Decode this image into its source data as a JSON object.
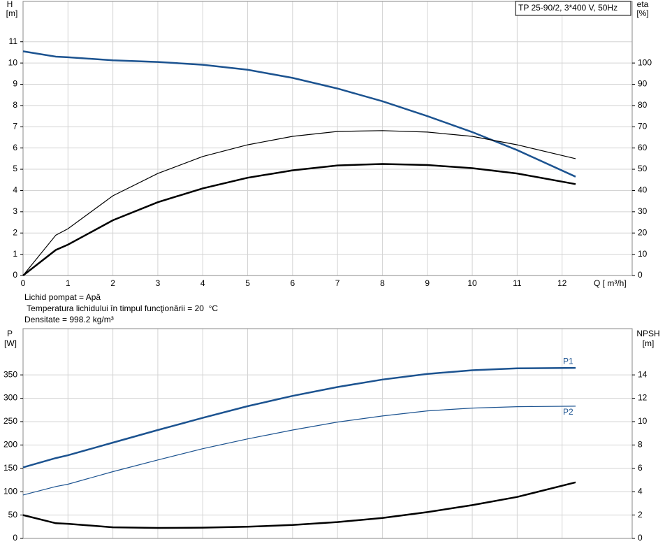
{
  "chart_data": [
    {
      "type": "line",
      "title": "TP 25-90/2, 3*400 V, 50Hz",
      "y_label": "H",
      "y_unit": "[m]",
      "y2_label": "eta",
      "y2_unit": "[%]",
      "x_label": "Q [ m³/h]",
      "notes": [
        "Lichid pompat = Apă",
        " Temperatura lichidului în timpul funcţionării = 20  °C",
        "Densitate = 998.2  kg/m³"
      ],
      "x": [
        0,
        0.73,
        1,
        2,
        3,
        4,
        5,
        6,
        7,
        8,
        9,
        10,
        11,
        12.3
      ],
      "xlim": [
        0,
        13.56
      ],
      "xticks": [
        0,
        1,
        2,
        3,
        4,
        5,
        6,
        7,
        8,
        9,
        10,
        11,
        12
      ],
      "ylim": [
        0,
        12.9
      ],
      "yticks": [
        0,
        1,
        2,
        3,
        4,
        5,
        6,
        7,
        8,
        9,
        10,
        11
      ],
      "y2lim": [
        0,
        129
      ],
      "y2ticks": [
        0,
        10,
        20,
        30,
        40,
        50,
        60,
        70,
        80,
        90,
        100
      ],
      "grid": true,
      "series": [
        {
          "color": "#1c5390",
          "linewidth": 2.5,
          "values": [
            10.55,
            10.3,
            10.27,
            10.13,
            10.05,
            9.92,
            9.68,
            9.3,
            8.8,
            8.2,
            7.5,
            6.75,
            5.9,
            4.65
          ]
        },
        {
          "color": "#000000",
          "linewidth": 1.2,
          "axis": "y2",
          "values": [
            0,
            19,
            22,
            37.5,
            48,
            56,
            61.5,
            65.5,
            67.8,
            68.2,
            67.5,
            65.5,
            61.5,
            55
          ]
        },
        {
          "color": "#000000",
          "linewidth": 2.5,
          "axis": "y2",
          "values": [
            0,
            12,
            14.5,
            26,
            34.5,
            41,
            46,
            49.5,
            51.8,
            52.5,
            52,
            50.5,
            48,
            43
          ]
        }
      ]
    },
    {
      "type": "line",
      "y_label": "P",
      "y_unit": "[W]",
      "y2_label": "NPSH",
      "y2_unit": "[m]",
      "x": [
        0,
        0.73,
        1,
        2,
        3,
        4,
        5,
        6,
        7,
        8,
        9,
        10,
        11,
        12.3
      ],
      "xlim": [
        0,
        13.56
      ],
      "ylim": [
        0,
        449
      ],
      "yticks": [
        0,
        50,
        100,
        150,
        200,
        250,
        300,
        350
      ],
      "y2lim": [
        0,
        17.96
      ],
      "y2ticks": [
        0,
        2,
        4,
        6,
        8,
        10,
        12,
        14
      ],
      "grid": true,
      "series": [
        {
          "name": "P1",
          "color": "#1c5390",
          "linewidth": 2.5,
          "values": [
            152,
            172,
            178,
            205,
            232,
            258,
            283,
            305,
            324,
            340,
            352,
            360,
            364,
            365
          ]
        },
        {
          "name": "P2",
          "color": "#1c5390",
          "linewidth": 1.2,
          "values": [
            93,
            111,
            116,
            143,
            168,
            192,
            213,
            232,
            249,
            262,
            273,
            279,
            282,
            283
          ]
        },
        {
          "color": "#000000",
          "linewidth": 2.5,
          "axis": "y2",
          "values": [
            2.0,
            1.3,
            1.25,
            0.95,
            0.9,
            0.92,
            1.0,
            1.15,
            1.4,
            1.75,
            2.25,
            2.85,
            3.55,
            4.8
          ]
        }
      ]
    }
  ]
}
